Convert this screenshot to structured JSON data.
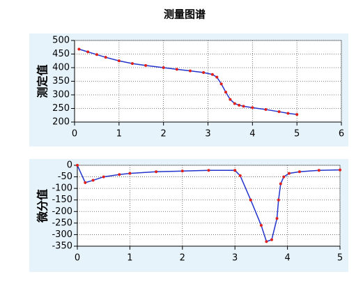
{
  "title": "测量图谱",
  "chart_data": [
    {
      "type": "line",
      "y_label": "测定值",
      "x": [
        0.1,
        0.3,
        0.5,
        0.7,
        1,
        1.3,
        1.6,
        2,
        2.3,
        2.6,
        2.9,
        3.1,
        3.2,
        3.3,
        3.4,
        3.5,
        3.6,
        3.7,
        3.8,
        4,
        4.3,
        4.6,
        4.8,
        5
      ],
      "values": [
        468,
        458,
        448,
        438,
        425,
        415,
        408,
        400,
        394,
        388,
        382,
        375,
        365,
        340,
        310,
        283,
        268,
        262,
        258,
        253,
        246,
        238,
        232,
        228
      ],
      "color": "#2233cc",
      "marker_color": "#e0201c",
      "xlim": [
        0,
        6
      ],
      "xticks": [
        0,
        1,
        2,
        3,
        4,
        5,
        6
      ],
      "ylim": [
        200,
        500
      ],
      "yticks": [
        200,
        250,
        300,
        350,
        400,
        450,
        500
      ],
      "grid": true
    },
    {
      "type": "line",
      "y_label": "微分值",
      "x": [
        0,
        0.15,
        0.3,
        0.5,
        0.8,
        1,
        1.5,
        2,
        2.5,
        3,
        3.1,
        3.3,
        3.5,
        3.6,
        3.7,
        3.8,
        3.83,
        3.87,
        3.93,
        4.03,
        4.23,
        4.6,
        5
      ],
      "values": [
        0,
        -75,
        -65,
        -50,
        -40,
        -35,
        -28,
        -25,
        -22,
        -22,
        -45,
        -150,
        -260,
        -330,
        -322,
        -230,
        -150,
        -80,
        -50,
        -35,
        -28,
        -22,
        -20
      ],
      "color": "#2233cc",
      "marker_color": "#e0201c",
      "xlim": [
        0,
        5
      ],
      "xticks": [
        0,
        1,
        2,
        3,
        4,
        5
      ],
      "ylim": [
        -350,
        0
      ],
      "yticks": [
        -350,
        -300,
        -250,
        -200,
        -150,
        -100,
        -50,
        0
      ],
      "grid": true
    }
  ]
}
